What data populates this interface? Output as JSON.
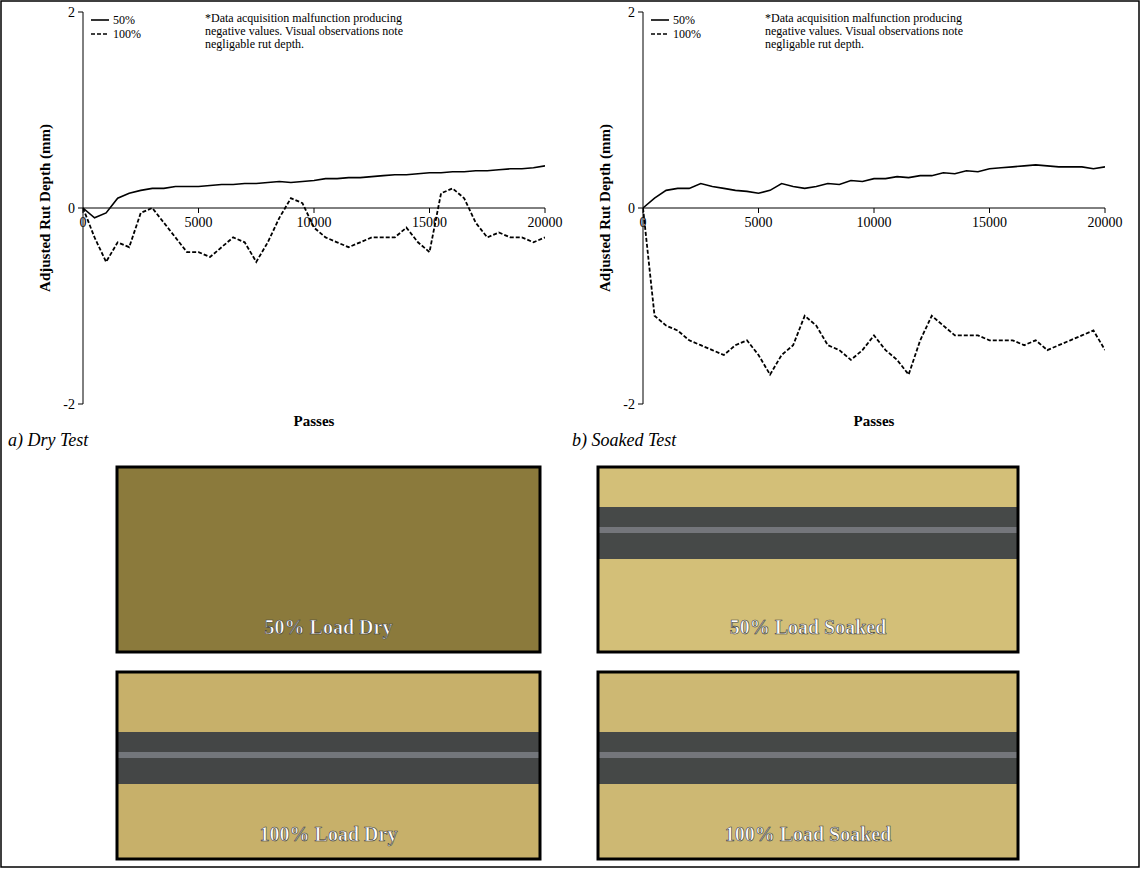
{
  "chart_data": [
    {
      "type": "line",
      "caption": "a)  Dry Test",
      "x_label": "Passes",
      "y_label": "Adjusted Rut Depth (mm)",
      "annotation": "*Data acquisition malfunction producing negative values.  Visual observations note negligable rut depth.",
      "legend": "top-left",
      "xlim": [
        0,
        20000
      ],
      "xticks": [
        0,
        5000,
        10000,
        15000,
        20000
      ],
      "ylim": [
        -2,
        2
      ],
      "yticks": [
        -2,
        0,
        2
      ],
      "x": [
        0,
        500,
        1000,
        1500,
        2000,
        2500,
        3000,
        3500,
        4000,
        4500,
        5000,
        5500,
        6000,
        6500,
        7000,
        7500,
        8000,
        8500,
        9000,
        9500,
        10000,
        10500,
        11000,
        11500,
        12000,
        12500,
        13000,
        13500,
        14000,
        14500,
        15000,
        15500,
        16000,
        16500,
        17000,
        17500,
        18000,
        18500,
        19000,
        19500,
        20000
      ],
      "series": [
        {
          "name": "50%",
          "color": "#000000",
          "line_style": "solid",
          "values": [
            0,
            -0.1,
            -0.05,
            0.1,
            0.15,
            0.18,
            0.2,
            0.2,
            0.22,
            0.22,
            0.22,
            0.23,
            0.24,
            0.24,
            0.25,
            0.25,
            0.26,
            0.27,
            0.26,
            0.27,
            0.28,
            0.3,
            0.3,
            0.31,
            0.31,
            0.32,
            0.33,
            0.34,
            0.34,
            0.35,
            0.36,
            0.36,
            0.37,
            0.37,
            0.38,
            0.38,
            0.39,
            0.4,
            0.4,
            0.41,
            0.43
          ]
        },
        {
          "name": "100%",
          "color": "#000000",
          "line_style": "dashed",
          "values": [
            0,
            -0.3,
            -0.55,
            -0.35,
            -0.4,
            -0.05,
            0,
            -0.15,
            -0.3,
            -0.45,
            -0.45,
            -0.5,
            -0.4,
            -0.3,
            -0.35,
            -0.55,
            -0.35,
            -0.1,
            0.1,
            0.05,
            -0.2,
            -0.3,
            -0.35,
            -0.4,
            -0.35,
            -0.3,
            -0.3,
            -0.3,
            -0.2,
            -0.35,
            -0.45,
            0.15,
            0.2,
            0.1,
            -0.15,
            -0.3,
            -0.25,
            -0.3,
            -0.3,
            -0.35,
            -0.3
          ]
        }
      ]
    },
    {
      "type": "line",
      "caption": "b)  Soaked Test",
      "x_label": "Passes",
      "y_label": "Adjusted Rut Depth (mm)",
      "annotation": "*Data acquisition malfunction producing negative values.  Visual observations note negligable rut depth.",
      "legend": "top-left",
      "xlim": [
        0,
        20000
      ],
      "xticks": [
        0,
        5000,
        10000,
        15000,
        20000
      ],
      "ylim": [
        -2,
        2
      ],
      "yticks": [
        -2,
        0,
        2
      ],
      "x": [
        0,
        500,
        1000,
        1500,
        2000,
        2500,
        3000,
        3500,
        4000,
        4500,
        5000,
        5500,
        6000,
        6500,
        7000,
        7500,
        8000,
        8500,
        9000,
        9500,
        10000,
        10500,
        11000,
        11500,
        12000,
        12500,
        13000,
        13500,
        14000,
        14500,
        15000,
        15500,
        16000,
        16500,
        17000,
        17500,
        18000,
        18500,
        19000,
        19500,
        20000
      ],
      "series": [
        {
          "name": "50%",
          "color": "#000000",
          "line_style": "solid",
          "values": [
            0,
            0.1,
            0.18,
            0.2,
            0.2,
            0.25,
            0.22,
            0.2,
            0.18,
            0.17,
            0.15,
            0.18,
            0.25,
            0.22,
            0.2,
            0.22,
            0.25,
            0.24,
            0.28,
            0.27,
            0.3,
            0.3,
            0.32,
            0.31,
            0.33,
            0.33,
            0.36,
            0.35,
            0.38,
            0.37,
            0.4,
            0.41,
            0.42,
            0.43,
            0.44,
            0.43,
            0.42,
            0.42,
            0.42,
            0.4,
            0.42
          ]
        },
        {
          "name": "100%",
          "color": "#000000",
          "line_style": "dashed",
          "values": [
            0,
            -1.1,
            -1.2,
            -1.25,
            -1.35,
            -1.4,
            -1.45,
            -1.5,
            -1.4,
            -1.35,
            -1.5,
            -1.7,
            -1.5,
            -1.4,
            -1.1,
            -1.2,
            -1.4,
            -1.45,
            -1.55,
            -1.45,
            -1.3,
            -1.45,
            -1.55,
            -1.7,
            -1.35,
            -1.1,
            -1.2,
            -1.3,
            -1.3,
            -1.3,
            -1.35,
            -1.35,
            -1.35,
            -1.4,
            -1.35,
            -1.45,
            -1.4,
            -1.35,
            -1.3,
            -1.25,
            -1.45
          ]
        }
      ]
    }
  ],
  "photos": [
    {
      "label": "50% Load Dry"
    },
    {
      "label": "50% Load Soaked"
    },
    {
      "label": "100% Load Dry"
    },
    {
      "label": "100% Load Soaked"
    }
  ]
}
